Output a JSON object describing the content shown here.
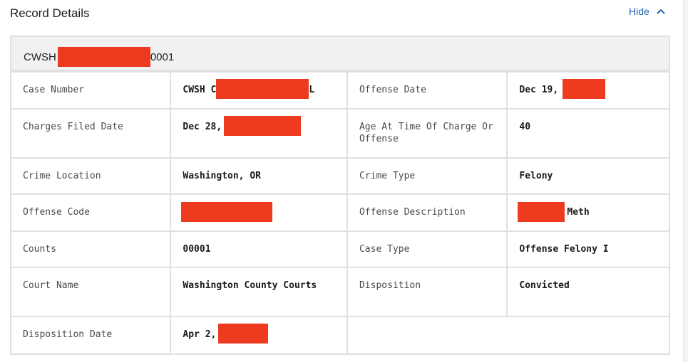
{
  "header": {
    "title": "Record Details",
    "hide_label": "Hide"
  },
  "record": {
    "id_prefix": "CWSH",
    "id_suffix": "0001"
  },
  "fields": {
    "case_number": {
      "label": "Case Number",
      "value_prefix": "CWSH C",
      "value_suffix": "L"
    },
    "offense_date": {
      "label": "Offense Date",
      "value_prefix": "Dec 19,"
    },
    "charges_filed_date": {
      "label": "Charges Filed Date",
      "value_prefix": "Dec 28,"
    },
    "age_at_charge": {
      "label": "Age At Time Of Charge Or Offense",
      "value": "40"
    },
    "crime_location": {
      "label": "Crime Location",
      "value": "Washington, OR"
    },
    "crime_type": {
      "label": "Crime Type",
      "value": "Felony"
    },
    "offense_code": {
      "label": "Offense Code",
      "value": ""
    },
    "offense_description": {
      "label": "Offense Description",
      "value_suffix": "Meth"
    },
    "counts": {
      "label": "Counts",
      "value": "00001"
    },
    "case_type": {
      "label": "Case Type",
      "value": "Offense Felony I"
    },
    "court_name": {
      "label": "Court Name",
      "value": "Washington County Courts"
    },
    "disposition": {
      "label": "Disposition",
      "value": "Convicted"
    },
    "disposition_date": {
      "label": "Disposition Date",
      "value_prefix": "Apr 2,"
    }
  },
  "colors": {
    "accent": "#2563b0",
    "redaction": "#ee3a1f",
    "border": "#e0e0e0",
    "header_bg": "#f1f1f1"
  },
  "icons": {
    "hide_toggle": "chevron-up-icon"
  }
}
